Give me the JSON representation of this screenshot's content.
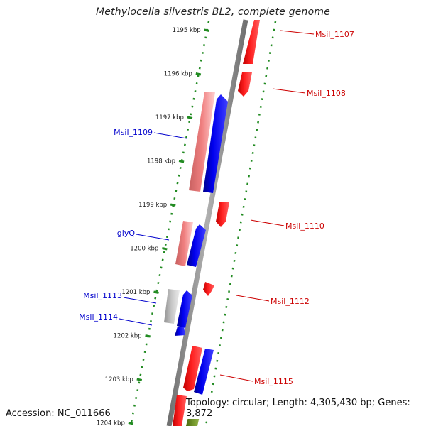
{
  "title": "Methylocella silvestris BL2, complete genome",
  "footer": {
    "accession": "Accession: NC_011666",
    "topology": "Topology: circular; Length: 4,305,430 bp; Genes: 3,872"
  },
  "kbp_labels": [
    "1195 kbp",
    "1196 kbp",
    "1197 kbp",
    "1198 kbp",
    "1199 kbp",
    "1200 kbp",
    "1201 kbp",
    "1202 kbp",
    "1203 kbp",
    "1204 kbp"
  ],
  "gene_labels": {
    "msil_1107": "Msil_1107",
    "msil_1108": "Msil_1108",
    "msil_1109": "Msil_1109",
    "msil_1110": "Msil_1110",
    "glyq": "glyQ",
    "msil_1112": "Msil_1112",
    "msil_1113": "Msil_1113",
    "msil_1114": "Msil_1114",
    "msil_1115": "Msil_1115"
  },
  "colors": {
    "forward_label": "#cc0000",
    "reverse_label": "#0000cc",
    "forward_gene": "#ff0000",
    "reverse_gene": "#0000ff",
    "reverse_gene_light": "#f08080",
    "rna_gene": "#b4b4b4",
    "olive_gene": "#6b8e23",
    "backbone": "#808080",
    "tick": "#228b22"
  }
}
